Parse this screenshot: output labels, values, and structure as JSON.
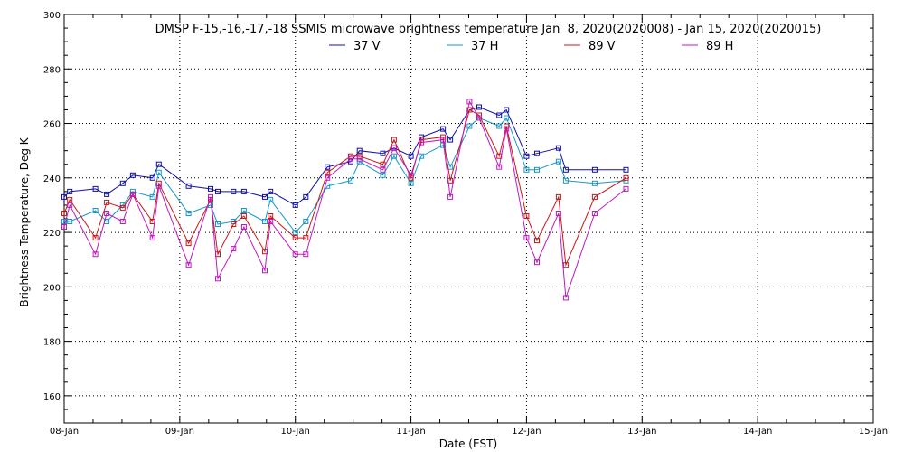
{
  "chart_data": {
    "type": "line",
    "title": "DMSP F-15,-16,-17,-18 SSMIS microwave brightness temperature Jan  8, 2020(2020008) - Jan 15, 2020(2020015)",
    "xlabel": "Date (EST)",
    "ylabel": "Brightness Temperature, Deg K",
    "xlim": [
      "2020-01-08",
      "2020-01-15"
    ],
    "x_tick_labels": [
      "08-Jan",
      "09-Jan",
      "10-Jan",
      "11-Jan",
      "12-Jan",
      "13-Jan",
      "14-Jan",
      "15-Jan"
    ],
    "ylim": [
      150,
      300
    ],
    "y_ticks": [
      160,
      180,
      200,
      220,
      240,
      260,
      280,
      300
    ],
    "grid": true,
    "legend_position": "top",
    "series": [
      {
        "name": "37 V",
        "color": "#1010a8",
        "points": [
          [
            "2020-01-08 00:00",
            233
          ],
          [
            "2020-01-08 01:10",
            235
          ],
          [
            "2020-01-08 06:30",
            236
          ],
          [
            "2020-01-08 08:50",
            234
          ],
          [
            "2020-01-08 12:10",
            238
          ],
          [
            "2020-01-08 14:15",
            241
          ],
          [
            "2020-01-08 18:20",
            240
          ],
          [
            "2020-01-08 19:40",
            245
          ],
          [
            "2020-01-09 01:50",
            237
          ],
          [
            "2020-01-09 06:25",
            236
          ],
          [
            "2020-01-09 07:55",
            235
          ],
          [
            "2020-01-09 11:10",
            235
          ],
          [
            "2020-01-09 13:20",
            235
          ],
          [
            "2020-01-09 17:40",
            233
          ],
          [
            "2020-01-09 18:50",
            235
          ],
          [
            "2020-01-10 00:00",
            230
          ],
          [
            "2020-01-10 02:10",
            233
          ],
          [
            "2020-01-10 06:40",
            244
          ],
          [
            "2020-01-10 11:30",
            246
          ],
          [
            "2020-01-10 13:20",
            250
          ],
          [
            "2020-01-10 18:10",
            249
          ],
          [
            "2020-01-10 20:30",
            251
          ],
          [
            "2020-01-11 00:00",
            248
          ],
          [
            "2020-01-11 02:10",
            255
          ],
          [
            "2020-01-11 06:40",
            258
          ],
          [
            "2020-01-11 08:10",
            254
          ],
          [
            "2020-01-11 12:10",
            265
          ],
          [
            "2020-01-11 14:10",
            266
          ],
          [
            "2020-01-11 18:20",
            263
          ],
          [
            "2020-01-11 19:50",
            265
          ],
          [
            "2020-01-12 00:00",
            248
          ],
          [
            "2020-01-12 02:10",
            249
          ],
          [
            "2020-01-12 06:40",
            251
          ],
          [
            "2020-01-12 08:10",
            243
          ],
          [
            "2020-01-12 14:10",
            243
          ],
          [
            "2020-01-12 20:40",
            243
          ]
        ]
      },
      {
        "name": "37 H",
        "color": "#1898c8",
        "points": [
          [
            "2020-01-08 00:00",
            224
          ],
          [
            "2020-01-08 01:10",
            224
          ],
          [
            "2020-01-08 06:30",
            228
          ],
          [
            "2020-01-08 08:50",
            224
          ],
          [
            "2020-01-08 12:10",
            230
          ],
          [
            "2020-01-08 14:15",
            235
          ],
          [
            "2020-01-08 18:20",
            233
          ],
          [
            "2020-01-08 19:40",
            242
          ],
          [
            "2020-01-09 01:50",
            227
          ],
          [
            "2020-01-09 06:25",
            230
          ],
          [
            "2020-01-09 07:55",
            223
          ],
          [
            "2020-01-09 11:10",
            224
          ],
          [
            "2020-01-09 13:20",
            228
          ],
          [
            "2020-01-09 17:40",
            224
          ],
          [
            "2020-01-09 18:50",
            232
          ],
          [
            "2020-01-10 00:00",
            220
          ],
          [
            "2020-01-10 02:10",
            224
          ],
          [
            "2020-01-10 06:40",
            237
          ],
          [
            "2020-01-10 11:30",
            239
          ],
          [
            "2020-01-10 13:20",
            246
          ],
          [
            "2020-01-10 18:10",
            241
          ],
          [
            "2020-01-10 20:30",
            248
          ],
          [
            "2020-01-11 00:00",
            238
          ],
          [
            "2020-01-11 02:10",
            248
          ],
          [
            "2020-01-11 06:40",
            252
          ],
          [
            "2020-01-11 08:10",
            244
          ],
          [
            "2020-01-11 12:10",
            259
          ],
          [
            "2020-01-11 14:10",
            262
          ],
          [
            "2020-01-11 18:20",
            259
          ],
          [
            "2020-01-11 19:50",
            262
          ],
          [
            "2020-01-12 00:00",
            243
          ],
          [
            "2020-01-12 02:10",
            243
          ],
          [
            "2020-01-12 06:40",
            246
          ],
          [
            "2020-01-12 08:10",
            239
          ],
          [
            "2020-01-12 14:10",
            238
          ],
          [
            "2020-01-12 20:40",
            239
          ]
        ]
      },
      {
        "name": "89 V",
        "color": "#c81818",
        "points": [
          [
            "2020-01-08 00:00",
            227
          ],
          [
            "2020-01-08 01:10",
            232
          ],
          [
            "2020-01-08 06:30",
            218
          ],
          [
            "2020-01-08 08:50",
            231
          ],
          [
            "2020-01-08 12:10",
            229
          ],
          [
            "2020-01-08 14:15",
            234
          ],
          [
            "2020-01-08 18:20",
            224
          ],
          [
            "2020-01-08 19:40",
            238
          ],
          [
            "2020-01-09 01:50",
            216
          ],
          [
            "2020-01-09 06:25",
            232
          ],
          [
            "2020-01-09 07:55",
            212
          ],
          [
            "2020-01-09 11:10",
            223
          ],
          [
            "2020-01-09 13:20",
            226
          ],
          [
            "2020-01-09 17:40",
            213
          ],
          [
            "2020-01-09 18:50",
            226
          ],
          [
            "2020-01-10 00:00",
            218
          ],
          [
            "2020-01-10 02:10",
            218
          ],
          [
            "2020-01-10 06:40",
            242
          ],
          [
            "2020-01-10 11:30",
            248
          ],
          [
            "2020-01-10 13:20",
            248
          ],
          [
            "2020-01-10 18:10",
            245
          ],
          [
            "2020-01-10 20:30",
            254
          ],
          [
            "2020-01-11 00:00",
            240
          ],
          [
            "2020-01-11 02:10",
            254
          ],
          [
            "2020-01-11 06:40",
            255
          ],
          [
            "2020-01-11 08:10",
            239
          ],
          [
            "2020-01-11 12:10",
            265
          ],
          [
            "2020-01-11 14:10",
            263
          ],
          [
            "2020-01-11 18:20",
            248
          ],
          [
            "2020-01-11 19:50",
            259
          ],
          [
            "2020-01-12 00:00",
            226
          ],
          [
            "2020-01-12 02:10",
            217
          ],
          [
            "2020-01-12 06:40",
            233
          ],
          [
            "2020-01-12 08:10",
            208
          ],
          [
            "2020-01-12 14:10",
            233
          ],
          [
            "2020-01-12 20:40",
            240
          ]
        ]
      },
      {
        "name": "89 H",
        "color": "#c018c0",
        "points": [
          [
            "2020-01-08 00:00",
            222
          ],
          [
            "2020-01-08 01:10",
            230
          ],
          [
            "2020-01-08 06:30",
            212
          ],
          [
            "2020-01-08 08:50",
            227
          ],
          [
            "2020-01-08 12:10",
            224
          ],
          [
            "2020-01-08 14:15",
            234
          ],
          [
            "2020-01-08 18:20",
            218
          ],
          [
            "2020-01-08 19:40",
            237
          ],
          [
            "2020-01-09 01:50",
            208
          ],
          [
            "2020-01-09 06:25",
            233
          ],
          [
            "2020-01-09 07:55",
            203
          ],
          [
            "2020-01-09 11:10",
            214
          ],
          [
            "2020-01-09 13:20",
            222
          ],
          [
            "2020-01-09 17:40",
            206
          ],
          [
            "2020-01-09 18:50",
            224
          ],
          [
            "2020-01-10 00:00",
            212
          ],
          [
            "2020-01-10 02:10",
            212
          ],
          [
            "2020-01-10 06:40",
            240
          ],
          [
            "2020-01-10 11:30",
            247
          ],
          [
            "2020-01-10 13:20",
            247
          ],
          [
            "2020-01-10 18:10",
            243
          ],
          [
            "2020-01-10 20:30",
            251
          ],
          [
            "2020-01-11 00:00",
            241
          ],
          [
            "2020-01-11 02:10",
            253
          ],
          [
            "2020-01-11 06:40",
            254
          ],
          [
            "2020-01-11 08:10",
            233
          ],
          [
            "2020-01-11 12:10",
            268
          ],
          [
            "2020-01-11 14:10",
            262
          ],
          [
            "2020-01-11 18:20",
            244
          ],
          [
            "2020-01-11 19:50",
            258
          ],
          [
            "2020-01-12 00:00",
            218
          ],
          [
            "2020-01-12 02:10",
            209
          ],
          [
            "2020-01-12 06:40",
            227
          ],
          [
            "2020-01-12 08:10",
            196
          ],
          [
            "2020-01-12 14:10",
            227
          ],
          [
            "2020-01-12 20:40",
            236
          ]
        ]
      }
    ]
  }
}
